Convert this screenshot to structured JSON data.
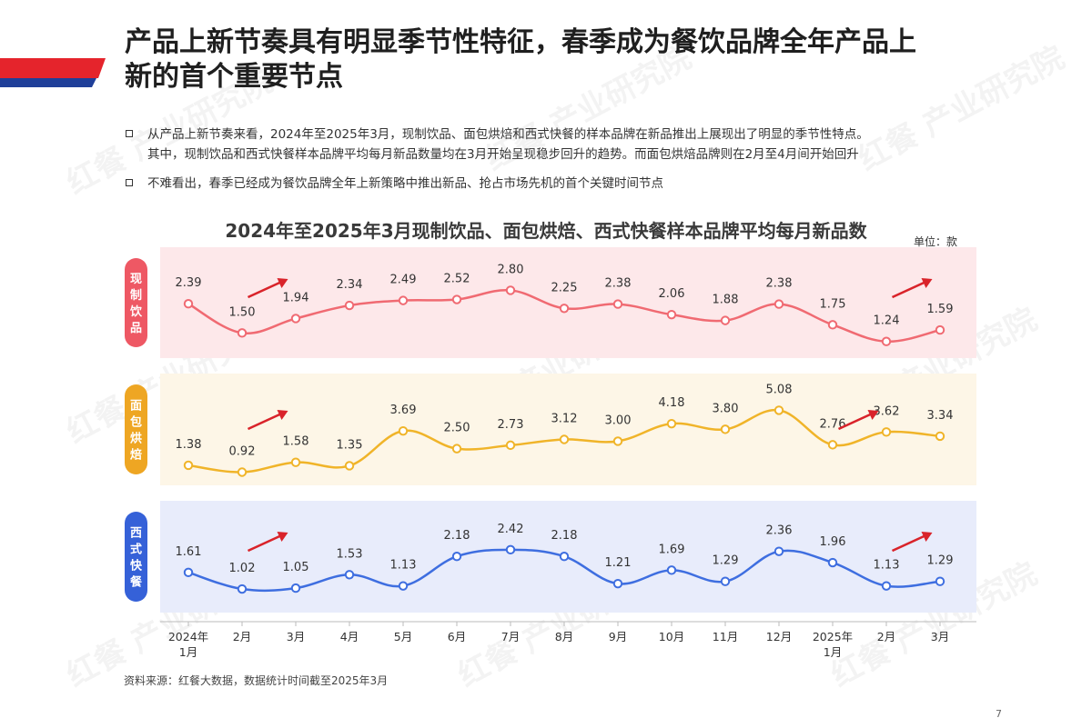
{
  "header": {
    "title_line1": "产品上新节奏具有明显季节性特征，春季成为餐饮品牌全年产品上",
    "title_line2": "新的首个重要节点"
  },
  "bullets": [
    {
      "line1": "从产品上新节奏来看，2024年至2025年3月，现制饮品、面包烘焙和西式快餐的样本品牌在新品推出上展现出了明显的季节性特点。",
      "line2": "其中，现制饮品和西式快餐样本品牌平均每月新品数量均在3月开始呈现稳步回升的趋势。而面包烘焙品牌则在2月至4月间开始回升"
    },
    {
      "line1": "不难看出，春季已经成为餐饮品牌全年上新策略中推出新品、抢占市场先机的首个关键时间节点"
    }
  ],
  "unit": "单位：款",
  "source": "资料来源：红餐大数据，数据统计时间截至2025年3月",
  "page_number": "7",
  "watermark": "红餐 产业研究院",
  "colors": {
    "ribbon_red": "#e5242c",
    "ribbon_blue": "#1f3f99",
    "arrow": "#d9232a"
  },
  "chart_data": {
    "type": "line",
    "title": "2024年至2025年3月现制饮品、面包烘焙、西式快餐样本品牌平均每月新品数",
    "categories": [
      "2024年\n1月",
      "2月",
      "3月",
      "4月",
      "5月",
      "6月",
      "7月",
      "8月",
      "9月",
      "10月",
      "11月",
      "12月",
      "2025年\n1月",
      "2月",
      "3月"
    ],
    "series": [
      {
        "name": "现制饮品",
        "color": "#f06a72",
        "panel_bg": "#fde8ea",
        "label_bg": "#ee5864",
        "values": [
          2.39,
          1.5,
          1.94,
          2.34,
          2.49,
          2.52,
          2.8,
          2.25,
          2.38,
          2.06,
          1.88,
          2.38,
          1.75,
          1.24,
          1.59
        ],
        "labels": [
          "2.39",
          "1.50",
          "1.94",
          "2.34",
          "2.49",
          "2.52",
          "2.80",
          "2.25",
          "2.38",
          "2.06",
          "1.88",
          "2.38",
          "1.75",
          "1.24",
          "1.59"
        ],
        "ylim": [
          0.9,
          3.2
        ],
        "arrows_after": [
          1,
          13
        ]
      },
      {
        "name": "面包烘焙",
        "color": "#f0b429",
        "panel_bg": "#fdf6e7",
        "label_bg": "#eea623",
        "values": [
          1.38,
          0.92,
          1.58,
          1.35,
          3.69,
          2.5,
          2.73,
          3.12,
          3.0,
          4.18,
          3.8,
          5.08,
          2.76,
          3.62,
          3.34
        ],
        "labels": [
          "1.38",
          "0.92",
          "1.58",
          "1.35",
          "3.69",
          "2.50",
          "2.73",
          "3.12",
          "3.00",
          "4.18",
          "3.80",
          "5.08",
          "2.76",
          "3.62",
          "3.34"
        ],
        "ylim": [
          0.4,
          5.9
        ],
        "arrows_after": [
          1,
          12
        ]
      },
      {
        "name": "西式快餐",
        "color": "#3e6ee0",
        "panel_bg": "#e8ecfb",
        "label_bg": "#3561d8",
        "values": [
          1.61,
          1.02,
          1.05,
          1.53,
          1.13,
          2.18,
          2.42,
          2.18,
          1.21,
          1.69,
          1.29,
          2.36,
          1.96,
          1.13,
          1.29
        ],
        "labels": [
          "1.61",
          "1.02",
          "1.05",
          "1.53",
          "1.13",
          "2.18",
          "2.42",
          "2.18",
          "1.21",
          "1.69",
          "1.29",
          "2.36",
          "1.96",
          "1.13",
          "1.29"
        ],
        "ylim": [
          0.6,
          2.9
        ],
        "arrows_after": [
          1,
          13
        ]
      }
    ]
  }
}
